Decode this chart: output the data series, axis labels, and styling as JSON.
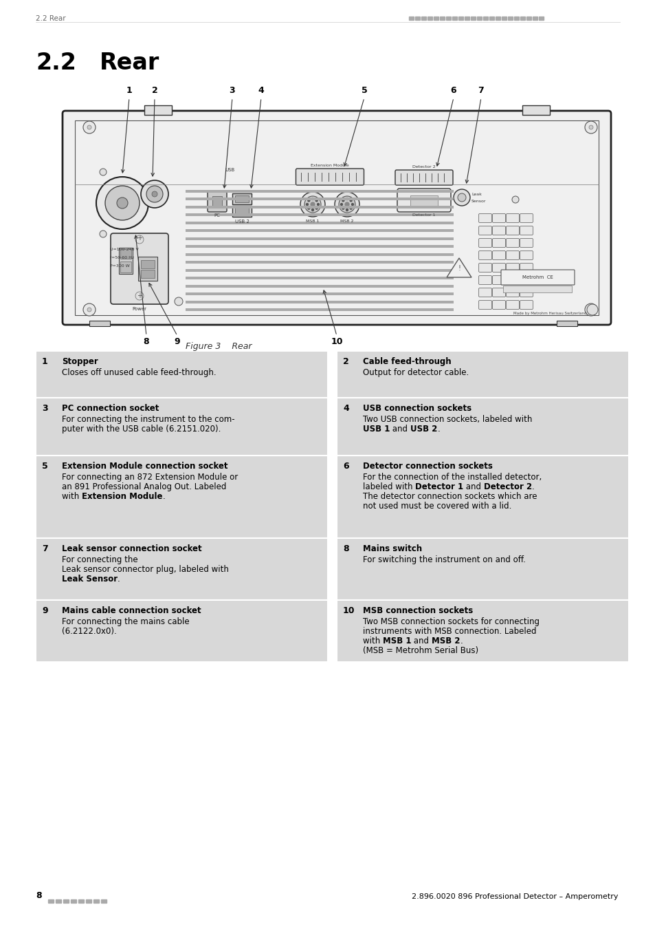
{
  "header_left": "2.2 Rear",
  "header_right_dots": true,
  "footer_left_page": "8",
  "footer_right": "2.896.0020 896 Professional Detector – Amperometry",
  "figure_caption": "Figure 3    Rear",
  "section_number": "2.2",
  "section_title": "Rear",
  "bg_color": "#ffffff",
  "table_bg_color": "#d8d8d8",
  "table_entries": [
    {
      "num": "1",
      "title": "Stopper",
      "lines": [
        [
          {
            "text": "Closes off unused cable feed-through.",
            "bold": false
          }
        ]
      ],
      "col": 0
    },
    {
      "num": "2",
      "title": "Cable feed-through",
      "lines": [
        [
          {
            "text": "Output for detector cable.",
            "bold": false
          }
        ]
      ],
      "col": 1
    },
    {
      "num": "3",
      "title": "PC connection socket",
      "lines": [
        [
          {
            "text": "For connecting the instrument to the com-",
            "bold": false
          }
        ],
        [
          {
            "text": "puter with the USB cable (6.2151.020).",
            "bold": false
          }
        ]
      ],
      "col": 0
    },
    {
      "num": "4",
      "title": "USB connection sockets",
      "lines": [
        [
          {
            "text": "Two USB connection sockets, labeled with",
            "bold": false
          }
        ],
        [
          {
            "text": "USB 1",
            "bold": true
          },
          {
            "text": " and ",
            "bold": false
          },
          {
            "text": "USB 2",
            "bold": true
          },
          {
            "text": ".",
            "bold": false
          }
        ]
      ],
      "col": 1
    },
    {
      "num": "5",
      "title": "Extension Module connection socket",
      "lines": [
        [
          {
            "text": "For connecting an 872 Extension Module or",
            "bold": false
          }
        ],
        [
          {
            "text": "an 891 Professional Analog Out. Labeled",
            "bold": false
          }
        ],
        [
          {
            "text": "with ",
            "bold": false
          },
          {
            "text": "Extension Module",
            "bold": true
          },
          {
            "text": ".",
            "bold": false
          }
        ]
      ],
      "col": 0
    },
    {
      "num": "6",
      "title": "Detector connection sockets",
      "lines": [
        [
          {
            "text": "For the connection of the installed detector,",
            "bold": false
          }
        ],
        [
          {
            "text": "labeled with ",
            "bold": false
          },
          {
            "text": "Detector 1",
            "bold": true
          },
          {
            "text": " and ",
            "bold": false
          },
          {
            "text": "Detector 2",
            "bold": true
          },
          {
            "text": ".",
            "bold": false
          }
        ],
        [
          {
            "text": "The detector connection sockets which are",
            "bold": false
          }
        ],
        [
          {
            "text": "not used must be covered with a lid.",
            "bold": false
          }
        ]
      ],
      "col": 1
    },
    {
      "num": "7",
      "title": "Leak sensor connection socket",
      "lines": [
        [
          {
            "text": "For connecting the",
            "bold": false
          }
        ],
        [
          {
            "text": "Leak sensor connector plug, labeled with",
            "bold": false
          }
        ],
        [
          {
            "text": "Leak Sensor",
            "bold": true
          },
          {
            "text": ".",
            "bold": false
          }
        ]
      ],
      "col": 0
    },
    {
      "num": "8",
      "title": "Mains switch",
      "lines": [
        [
          {
            "text": "For switching the instrument on and off.",
            "bold": false
          }
        ]
      ],
      "col": 1
    },
    {
      "num": "9",
      "title": "Mains cable connection socket",
      "lines": [
        [
          {
            "text": "For connecting the mains cable",
            "bold": false
          }
        ],
        [
          {
            "text": "(6.2122.0x0).",
            "bold": false
          }
        ]
      ],
      "col": 0
    },
    {
      "num": "10",
      "title": "MSB connection sockets",
      "lines": [
        [
          {
            "text": "Two MSB connection sockets for connecting",
            "bold": false
          }
        ],
        [
          {
            "text": "instruments with MSB connection. Labeled",
            "bold": false
          }
        ],
        [
          {
            "text": "with ",
            "bold": false
          },
          {
            "text": "MSB 1",
            "bold": true
          },
          {
            "text": " and ",
            "bold": false
          },
          {
            "text": "MSB 2",
            "bold": true
          },
          {
            "text": ".",
            "bold": false
          }
        ],
        [
          {
            "text": "(MSB = Metrohm Serial Bus)",
            "bold": false
          }
        ]
      ],
      "col": 1
    }
  ]
}
